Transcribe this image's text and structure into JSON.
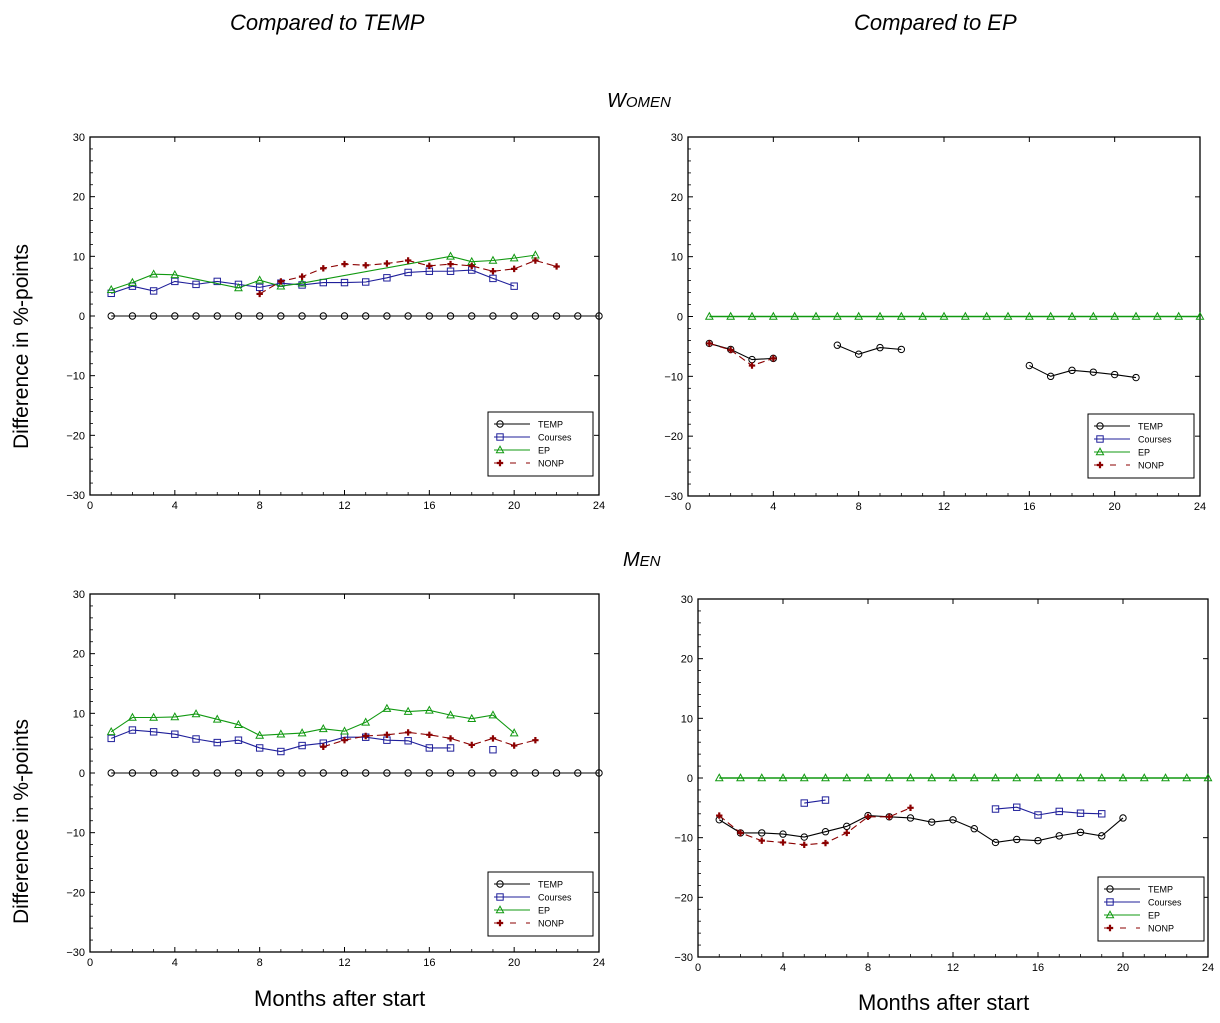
{
  "titles": {
    "col_left": "Compared to TEMP",
    "col_right": "Compared to EP",
    "row_women_first": "W",
    "row_women_rest": "OMEN",
    "row_men_first": "M",
    "row_men_rest": "EN"
  },
  "axis_titles": {
    "ylabel_top": "Difference in %-points",
    "ylabel_bottom": "Difference in %-points",
    "xlabel_left": "Months after start",
    "xlabel_right": "Months after start"
  },
  "colors": {
    "TEMP": "#000000",
    "Courses": "#1f1f9a",
    "EP": "#119911",
    "NONP": "#8b0000"
  },
  "chart_data": [
    {
      "id": "women-temp",
      "type": "line",
      "xlim": [
        0,
        24
      ],
      "ylim": [
        -30,
        30
      ],
      "xticks": [
        0,
        4,
        8,
        12,
        16,
        20,
        24
      ],
      "yticks": [
        -30,
        -20,
        -10,
        0,
        10,
        20,
        30
      ],
      "legend": "bottom-right",
      "series": [
        {
          "name": "TEMP",
          "marker": "circle",
          "dash": false,
          "x": [
            1,
            2,
            3,
            4,
            5,
            6,
            7,
            8,
            9,
            10,
            11,
            12,
            13,
            14,
            15,
            16,
            17,
            18,
            19,
            20,
            21,
            22,
            23,
            24
          ],
          "y": [
            0,
            0,
            0,
            0,
            0,
            0,
            0,
            0,
            0,
            0,
            0,
            0,
            0,
            0,
            0,
            0,
            0,
            0,
            0,
            0,
            0,
            0,
            0,
            0
          ]
        },
        {
          "name": "Courses",
          "marker": "square",
          "dash": false,
          "x": [
            1,
            2,
            3,
            4,
            5,
            6,
            7,
            8,
            9,
            10,
            11,
            12,
            13,
            14,
            15,
            16,
            17,
            18,
            19,
            20
          ],
          "y": [
            3.8,
            5.0,
            4.2,
            5.8,
            5.3,
            5.8,
            5.3,
            4.8,
            5.5,
            5.2,
            5.6,
            5.6,
            5.7,
            6.4,
            7.3,
            7.5,
            7.5,
            7.7,
            6.3,
            5.0
          ]
        },
        {
          "name": "EP",
          "marker": "triangle",
          "dash": false,
          "x": [
            1,
            2,
            3,
            4,
            7,
            8,
            9,
            10,
            17,
            18,
            19,
            20,
            21
          ],
          "y": [
            4.4,
            5.6,
            7.0,
            6.9,
            4.7,
            6.0,
            5.0,
            5.5,
            10.0,
            9.1,
            9.3,
            9.7,
            10.2
          ]
        },
        {
          "name": "NONP",
          "marker": "plus",
          "dash": true,
          "x": [
            8,
            9,
            10,
            11,
            12,
            13,
            14,
            15,
            16,
            17,
            18,
            19,
            20,
            21,
            22
          ],
          "y": [
            3.7,
            5.8,
            6.6,
            8.0,
            8.7,
            8.5,
            8.8,
            9.3,
            8.4,
            8.7,
            8.4,
            7.5,
            7.9,
            9.3,
            8.3
          ]
        }
      ]
    },
    {
      "id": "women-ep",
      "type": "line",
      "xlim": [
        0,
        24
      ],
      "ylim": [
        -30,
        30
      ],
      "xticks": [
        0,
        4,
        8,
        12,
        16,
        20,
        24
      ],
      "yticks": [
        -30,
        -20,
        -10,
        0,
        10,
        20,
        30
      ],
      "legend": "bottom-right",
      "series": [
        {
          "name": "TEMP",
          "marker": "circle",
          "dash": false,
          "segments": [
            {
              "x": [
                1,
                2,
                3,
                4
              ],
              "y": [
                -4.5,
                -5.5,
                -7.2,
                -7.0
              ]
            },
            {
              "x": [
                7,
                8,
                9,
                10
              ],
              "y": [
                -4.8,
                -6.3,
                -5.2,
                -5.5
              ]
            },
            {
              "x": [
                16,
                17,
                18,
                19,
                20,
                21
              ],
              "y": [
                -8.2,
                -10.0,
                -9.0,
                -9.3,
                -9.7,
                -10.2
              ]
            }
          ]
        },
        {
          "name": "Courses",
          "marker": "square",
          "dash": false,
          "segments": []
        },
        {
          "name": "EP",
          "marker": "triangle",
          "dash": false,
          "x": [
            1,
            2,
            3,
            4,
            5,
            6,
            7,
            8,
            9,
            10,
            11,
            12,
            13,
            14,
            15,
            16,
            17,
            18,
            19,
            20,
            21,
            22,
            23,
            24
          ],
          "y": [
            0,
            0,
            0,
            0,
            0,
            0,
            0,
            0,
            0,
            0,
            0,
            0,
            0,
            0,
            0,
            0,
            0,
            0,
            0,
            0,
            0,
            0,
            0,
            0
          ]
        },
        {
          "name": "NONP",
          "marker": "plus",
          "dash": true,
          "x": [
            1,
            2,
            3,
            4
          ],
          "y": [
            -4.5,
            -5.6,
            -8.2,
            -7.0
          ]
        }
      ]
    },
    {
      "id": "men-temp",
      "type": "line",
      "xlim": [
        0,
        24
      ],
      "ylim": [
        -30,
        30
      ],
      "xticks": [
        0,
        4,
        8,
        12,
        16,
        20,
        24
      ],
      "yticks": [
        -30,
        -20,
        -10,
        0,
        10,
        20,
        30
      ],
      "legend": "bottom-right",
      "series": [
        {
          "name": "TEMP",
          "marker": "circle",
          "dash": false,
          "x": [
            1,
            2,
            3,
            4,
            5,
            6,
            7,
            8,
            9,
            10,
            11,
            12,
            13,
            14,
            15,
            16,
            17,
            18,
            19,
            20,
            21,
            22,
            23,
            24
          ],
          "y": [
            0,
            0,
            0,
            0,
            0,
            0,
            0,
            0,
            0,
            0,
            0,
            0,
            0,
            0,
            0,
            0,
            0,
            0,
            0,
            0,
            0,
            0,
            0,
            0
          ]
        },
        {
          "name": "Courses",
          "marker": "square",
          "dash": false,
          "segments": [
            {
              "x": [
                1,
                2,
                3,
                4,
                5,
                6,
                7,
                8,
                9,
                10,
                11,
                12,
                13,
                14,
                15,
                16,
                17
              ],
              "y": [
                5.8,
                7.2,
                6.9,
                6.5,
                5.7,
                5.1,
                5.5,
                4.2,
                3.6,
                4.6,
                5.0,
                6.0,
                6.0,
                5.5,
                5.4,
                4.2,
                4.2
              ]
            },
            {
              "x": [
                19
              ],
              "y": [
                3.9
              ]
            }
          ]
        },
        {
          "name": "EP",
          "marker": "triangle",
          "dash": false,
          "x": [
            1,
            2,
            3,
            4,
            5,
            6,
            7,
            8,
            9,
            10,
            11,
            12,
            13,
            14,
            15,
            16,
            17,
            18,
            19,
            20
          ],
          "y": [
            6.9,
            9.3,
            9.3,
            9.4,
            9.9,
            9.0,
            8.1,
            6.3,
            6.5,
            6.7,
            7.4,
            7.0,
            8.5,
            10.8,
            10.3,
            10.5,
            9.7,
            9.1,
            9.7,
            6.7
          ]
        },
        {
          "name": "NONP",
          "marker": "plus",
          "dash": true,
          "x": [
            11,
            12,
            13,
            14,
            15,
            16,
            17,
            18,
            19,
            20,
            21
          ],
          "y": [
            4.4,
            5.5,
            6.2,
            6.4,
            6.8,
            6.4,
            5.8,
            4.7,
            5.8,
            4.6,
            5.5
          ]
        }
      ]
    },
    {
      "id": "men-ep",
      "type": "line",
      "xlim": [
        0,
        24
      ],
      "ylim": [
        -30,
        30
      ],
      "xticks": [
        0,
        4,
        8,
        12,
        16,
        20,
        24
      ],
      "yticks": [
        -30,
        -20,
        -10,
        0,
        10,
        20,
        30
      ],
      "legend": "bottom-right",
      "series": [
        {
          "name": "TEMP",
          "marker": "circle",
          "dash": false,
          "x": [
            1,
            2,
            3,
            4,
            5,
            6,
            7,
            8,
            9,
            10,
            11,
            12,
            13,
            14,
            15,
            16,
            17,
            18,
            19,
            20
          ],
          "y": [
            -7.0,
            -9.2,
            -9.2,
            -9.4,
            -9.9,
            -9.0,
            -8.1,
            -6.3,
            -6.5,
            -6.7,
            -7.4,
            -7.0,
            -8.5,
            -10.8,
            -10.3,
            -10.5,
            -9.7,
            -9.1,
            -9.7,
            -6.7
          ]
        },
        {
          "name": "Courses",
          "marker": "square",
          "dash": false,
          "segments": [
            {
              "x": [
                5,
                6
              ],
              "y": [
                -4.2,
                -3.7
              ]
            },
            {
              "x": [
                14,
                15,
                16,
                17,
                18,
                19
              ],
              "y": [
                -5.2,
                -4.9,
                -6.2,
                -5.6,
                -5.9,
                -6.0
              ]
            }
          ]
        },
        {
          "name": "EP",
          "marker": "triangle",
          "dash": false,
          "x": [
            1,
            2,
            3,
            4,
            5,
            6,
            7,
            8,
            9,
            10,
            11,
            12,
            13,
            14,
            15,
            16,
            17,
            18,
            19,
            20,
            21,
            22,
            23,
            24
          ],
          "y": [
            0,
            0,
            0,
            0,
            0,
            0,
            0,
            0,
            0,
            0,
            0,
            0,
            0,
            0,
            0,
            0,
            0,
            0,
            0,
            0,
            0,
            0,
            0,
            0
          ]
        },
        {
          "name": "NONP",
          "marker": "plus",
          "dash": true,
          "x": [
            1,
            2,
            3,
            4,
            5,
            6,
            7,
            8,
            9,
            10
          ],
          "y": [
            -6.3,
            -9.2,
            -10.5,
            -10.8,
            -11.2,
            -10.9,
            -9.2,
            -6.5,
            -6.5,
            -5.0
          ]
        }
      ]
    }
  ]
}
